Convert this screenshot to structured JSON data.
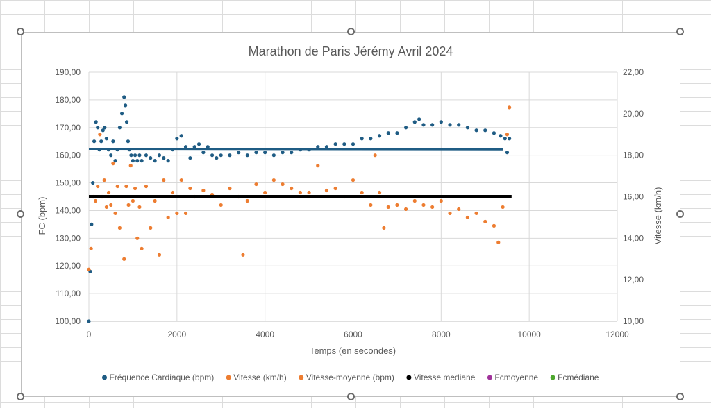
{
  "chart_data": {
    "type": "scatter",
    "title": "Marathon de Paris Jérémy Avril 2024",
    "xlabel": "Temps (en secondes)",
    "ylabel": "FC (bpm)",
    "y2label": "Vitesse (km/h)",
    "xlim": [
      0,
      12000
    ],
    "ylim": [
      100,
      190
    ],
    "y2lim": [
      10,
      22
    ],
    "x_ticks": [
      "0",
      "2000",
      "4000",
      "6000",
      "8000",
      "10000",
      "12000"
    ],
    "y_ticks": [
      "100,00",
      "110,00",
      "120,00",
      "130,00",
      "140,00",
      "150,00",
      "160,00",
      "170,00",
      "180,00",
      "190,00"
    ],
    "y2_ticks": [
      "10,00",
      "12,00",
      "14,00",
      "16,00",
      "18,00",
      "20,00",
      "22,00"
    ],
    "grid": true,
    "legend_position": "bottom",
    "series": [
      {
        "name": "Fréquence Cardiaque (bpm)",
        "axis": "left",
        "color": "#1f5c84",
        "marker": "dot",
        "x": [
          0,
          30,
          60,
          90,
          120,
          160,
          200,
          240,
          280,
          320,
          360,
          400,
          450,
          500,
          550,
          600,
          650,
          700,
          750,
          800,
          830,
          860,
          890,
          920,
          960,
          1000,
          1050,
          1100,
          1150,
          1200,
          1300,
          1400,
          1500,
          1600,
          1700,
          1800,
          1900,
          2000,
          2100,
          2200,
          2300,
          2400,
          2500,
          2600,
          2700,
          2800,
          2900,
          3000,
          3200,
          3400,
          3600,
          3800,
          4000,
          4200,
          4400,
          4600,
          4800,
          5000,
          5200,
          5400,
          5600,
          5800,
          6000,
          6200,
          6400,
          6600,
          6800,
          7000,
          7200,
          7400,
          7500,
          7600,
          7800,
          8000,
          8200,
          8400,
          8600,
          8800,
          9000,
          9200,
          9350,
          9450,
          9500,
          9550
        ],
        "y": [
          100,
          118,
          135,
          150,
          165,
          172,
          170,
          162,
          165,
          169,
          170,
          166,
          162,
          160,
          165,
          158,
          162,
          170,
          175,
          181,
          178,
          172,
          165,
          162,
          160,
          158,
          160,
          158,
          160,
          158,
          160,
          159,
          158,
          160,
          159,
          158,
          162,
          166,
          167,
          163,
          159,
          163,
          164,
          161,
          163,
          160,
          159,
          160,
          160,
          161,
          160,
          161,
          161,
          160,
          161,
          161,
          162,
          162,
          163,
          163,
          164,
          164,
          164,
          166,
          166,
          167,
          168,
          168,
          170,
          172,
          173,
          171,
          171,
          172,
          171,
          171,
          170,
          169,
          169,
          168,
          167,
          166,
          161,
          166
        ]
      },
      {
        "name": "Vitesse (km/h)",
        "axis": "right",
        "color": "#ed7d31",
        "marker": "dot",
        "x": [
          0,
          50,
          100,
          150,
          200,
          250,
          300,
          350,
          400,
          450,
          500,
          550,
          600,
          650,
          700,
          750,
          800,
          850,
          900,
          950,
          1000,
          1050,
          1100,
          1150,
          1200,
          1300,
          1400,
          1500,
          1600,
          1700,
          1800,
          1900,
          2000,
          2100,
          2200,
          2300,
          2400,
          2600,
          2800,
          3000,
          3200,
          3400,
          3500,
          3600,
          3800,
          4000,
          4200,
          4400,
          4600,
          4800,
          5000,
          5200,
          5400,
          5600,
          5800,
          6000,
          6200,
          6400,
          6500,
          6600,
          6700,
          6800,
          7000,
          7200,
          7400,
          7600,
          7800,
          8000,
          8200,
          8400,
          8600,
          8800,
          9000,
          9200,
          9300,
          9400,
          9500,
          9550
        ],
        "y": [
          12.5,
          13.5,
          16.0,
          15.8,
          16.5,
          19.0,
          16.0,
          16.8,
          15.5,
          16.2,
          15.6,
          17.6,
          15.2,
          16.5,
          14.5,
          16.0,
          13.0,
          16.5,
          15.6,
          17.5,
          15.8,
          16.4,
          14.0,
          15.5,
          13.5,
          16.5,
          14.5,
          15.8,
          13.2,
          16.8,
          15.0,
          16.2,
          15.2,
          16.8,
          15.2,
          16.4,
          16.0,
          16.3,
          16.1,
          15.6,
          16.4,
          16.0,
          13.2,
          15.8,
          16.6,
          16.2,
          16.8,
          16.6,
          16.4,
          16.2,
          16.2,
          17.5,
          16.3,
          16.4,
          16.0,
          16.8,
          16.2,
          15.6,
          18.0,
          16.2,
          14.5,
          15.5,
          15.6,
          15.4,
          15.8,
          15.6,
          15.5,
          15.8,
          15.2,
          15.4,
          15.0,
          15.2,
          14.8,
          14.6,
          13.8,
          15.5,
          19.0,
          20.3
        ]
      },
      {
        "name": "Vitesse-moyenne (bpm)",
        "axis": "right",
        "color": "#ed7d31",
        "marker": "dot",
        "x": [],
        "y": []
      },
      {
        "name": "Vitesse mediane",
        "axis": "right",
        "color": "#000000",
        "marker": "dot",
        "x": [
          0,
          9600
        ],
        "y": [
          16.0,
          16.0
        ]
      },
      {
        "name": "Fcmoyenne",
        "axis": "left",
        "color": "#a0329a",
        "marker": "dot",
        "x": [],
        "y": []
      },
      {
        "name": "Fcmédiane",
        "axis": "left",
        "color": "#4ea72e",
        "marker": "dot",
        "x": [],
        "y": []
      }
    ],
    "fc_reference_line": {
      "color": "#1f5c84",
      "x": [
        0,
        9400
      ],
      "y": [
        162.3,
        162.1
      ]
    }
  }
}
